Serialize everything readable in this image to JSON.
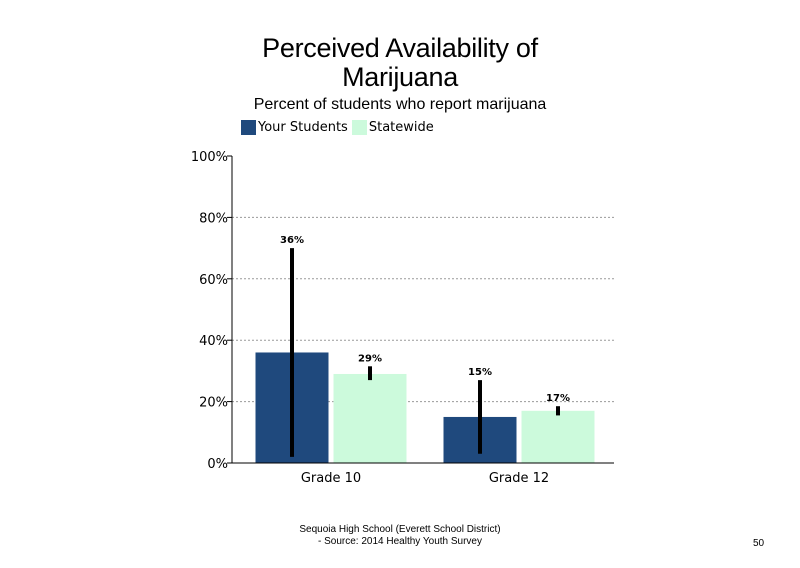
{
  "chart_data": {
    "type": "bar",
    "title_line1": "Perceived Availability of",
    "title_line2": "Marijuana",
    "subtitle": "Percent of students  who report marijuana",
    "categories": [
      "Grade 10",
      "Grade 12"
    ],
    "series": [
      {
        "name": "Your Students",
        "color": "#1f497d",
        "values": [
          36,
          15
        ],
        "value_labels": [
          "36%",
          "15%"
        ],
        "error_low": [
          2,
          3
        ],
        "error_high": [
          70,
          27
        ]
      },
      {
        "name": "Statewide",
        "color": "#ccfadc",
        "values": [
          29,
          17
        ],
        "value_labels": [
          "29%",
          "17%"
        ],
        "error_low": [
          27,
          15.5
        ],
        "error_high": [
          31.5,
          18.5
        ]
      }
    ],
    "ylim": [
      0,
      100
    ],
    "y_ticks": [
      0,
      20,
      40,
      60,
      80,
      100
    ],
    "y_tick_labels": [
      "0%",
      "20%",
      "40%",
      "60%",
      "80%",
      "100%"
    ],
    "grid": true,
    "legend_position": "top"
  },
  "footer": {
    "line1": "Sequoia High School (Everett School District)",
    "line2": "- Source: 2014 Healthy  Youth Survey"
  },
  "page_number": "50"
}
